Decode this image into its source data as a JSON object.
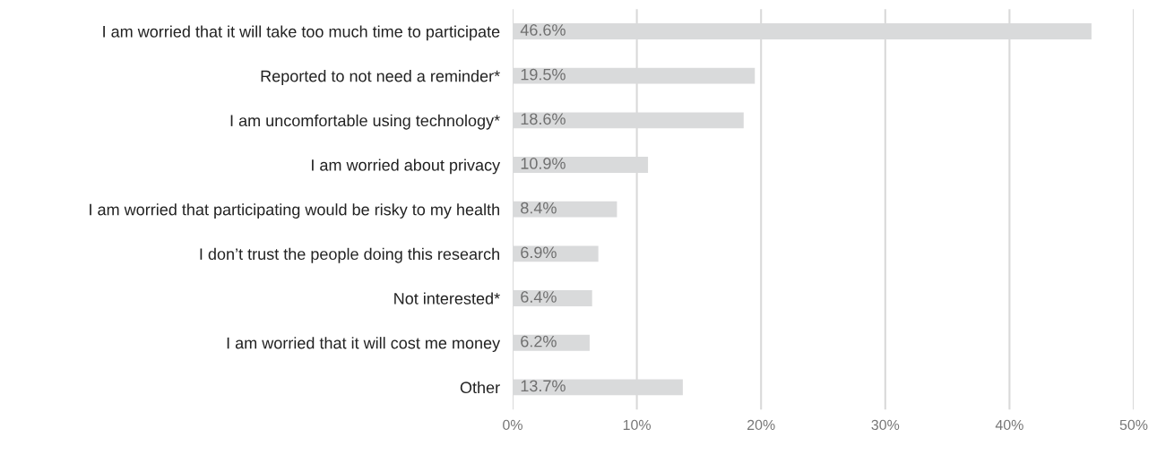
{
  "chart_data": {
    "type": "bar",
    "orientation": "horizontal",
    "categories": [
      "I am worried that it will take too much time to participate",
      "Reported to not need a reminder*",
      "I am uncomfortable using technology*",
      "I am worried about privacy",
      "I am worried that participating would be risky to my health",
      "I don’t trust the people doing this research",
      "Not interested*",
      "I am worried that it will cost me money",
      "Other"
    ],
    "values": [
      46.6,
      19.5,
      18.6,
      10.9,
      8.4,
      6.9,
      6.4,
      6.2,
      13.7
    ],
    "value_labels": [
      "46.6%",
      "19.5%",
      "18.6%",
      "10.9%",
      "8.4%",
      "6.9%",
      "6.4%",
      "6.2%",
      "13.7%"
    ],
    "color": "#d9dadb",
    "xlim": [
      0,
      50
    ],
    "xticks": [
      {
        "value": 0,
        "label": "0%"
      },
      {
        "value": 10,
        "label": "10%"
      },
      {
        "value": 20,
        "label": "20%"
      },
      {
        "value": 30,
        "label": "30%"
      },
      {
        "value": 40,
        "label": "40%"
      },
      {
        "value": 50,
        "label": "50%"
      }
    ],
    "grid": "x"
  }
}
